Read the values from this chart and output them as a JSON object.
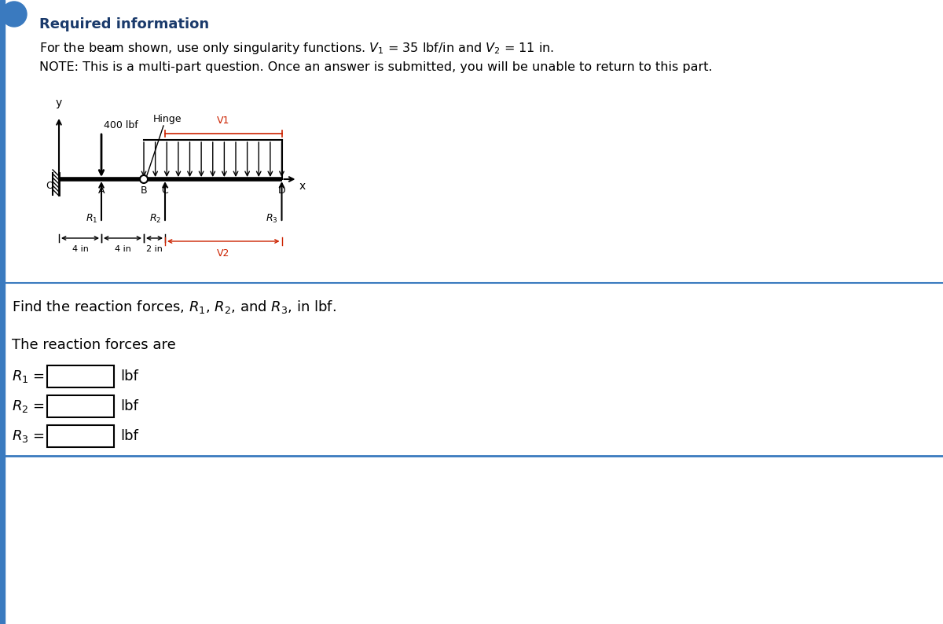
{
  "title": "Required information",
  "line1_part1": "For the beam shown, use only singularity functions. ",
  "line1_v1": "V",
  "line1_mid": " = 35 lbf/in and ",
  "line1_v2": "V",
  "line1_end": " = 11 in.",
  "line2": "NOTE: This is a multi-part question. Once an answer is submitted, you will be unable to return to this part.",
  "find_text": "Find the reaction forces, R",
  "reaction_text": "The reaction forces are",
  "load_label": "400 lbf",
  "hinge_label": "Hinge",
  "v1_label": "V1",
  "v2_label": "V2",
  "dim1": "4 in",
  "dim2": "4 in",
  "dim3": "2 in",
  "background_color": "#ffffff",
  "header_color": "#1a3a6b",
  "top_bar_color": "#3a7abf",
  "beam_color": "#000000",
  "v1_color": "#cc2200",
  "v2_color": "#cc2200",
  "separator_color": "#3a7abf",
  "left_bar_color": "#3a7abf"
}
